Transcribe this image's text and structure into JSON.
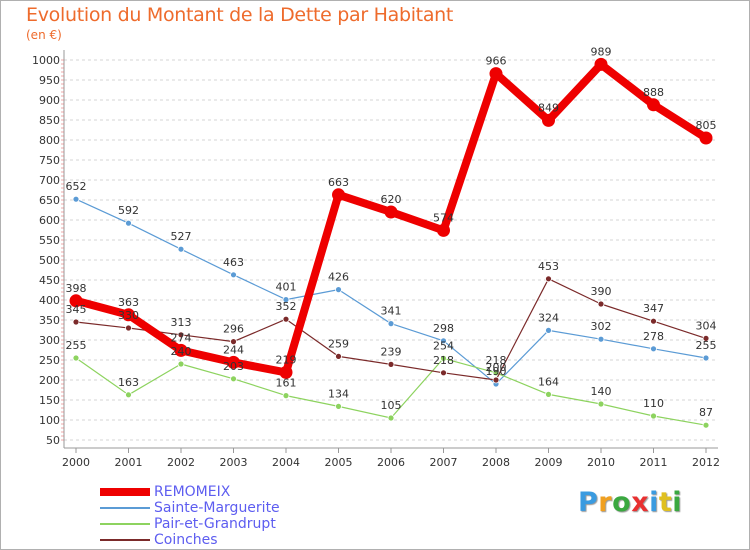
{
  "chart_data": {
    "type": "line",
    "title": "Evolution du Montant de la Dette par Habitant",
    "subtitle": "(en €)",
    "x": [
      "2000",
      "2001",
      "2002",
      "2003",
      "2004",
      "2005",
      "2006",
      "2007",
      "2008",
      "2009",
      "2010",
      "2011",
      "2012"
    ],
    "ylim": [
      50,
      1000
    ],
    "yticks": [
      50,
      100,
      150,
      200,
      250,
      300,
      350,
      400,
      450,
      500,
      550,
      600,
      650,
      700,
      750,
      800,
      850,
      900,
      950,
      1000
    ],
    "grid": "horizontal dashed",
    "legend_position": "bottom-left",
    "series": [
      {
        "name": "REMOMEIX",
        "color": "#ee0000",
        "values": [
          398,
          363,
          274,
          244,
          219,
          663,
          620,
          574,
          966,
          849,
          989,
          888,
          805
        ]
      },
      {
        "name": "Sainte-Marguerite",
        "color": "#5b9bd5",
        "values": [
          652,
          592,
          527,
          463,
          401,
          426,
          341,
          298,
          190,
          324,
          302,
          278,
          255
        ]
      },
      {
        "name": "Pair-et-Grandrupt",
        "color": "#8dd35f",
        "values": [
          255,
          163,
          240,
          203,
          161,
          134,
          105,
          254,
          218,
          164,
          140,
          110,
          87
        ]
      },
      {
        "name": "Coinches",
        "color": "#7b2a2a",
        "values": [
          345,
          330,
          313,
          296,
          352,
          259,
          239,
          218,
          200,
          453,
          390,
          347,
          304
        ]
      }
    ]
  },
  "logo": {
    "letters": [
      "P",
      "r",
      "o",
      "x",
      "i",
      "t",
      "i"
    ],
    "colors": [
      "#3a9be0",
      "#f0a020",
      "#3aa840",
      "#e83030",
      "#3a9be0",
      "#e0c020",
      "#3aa840"
    ]
  }
}
